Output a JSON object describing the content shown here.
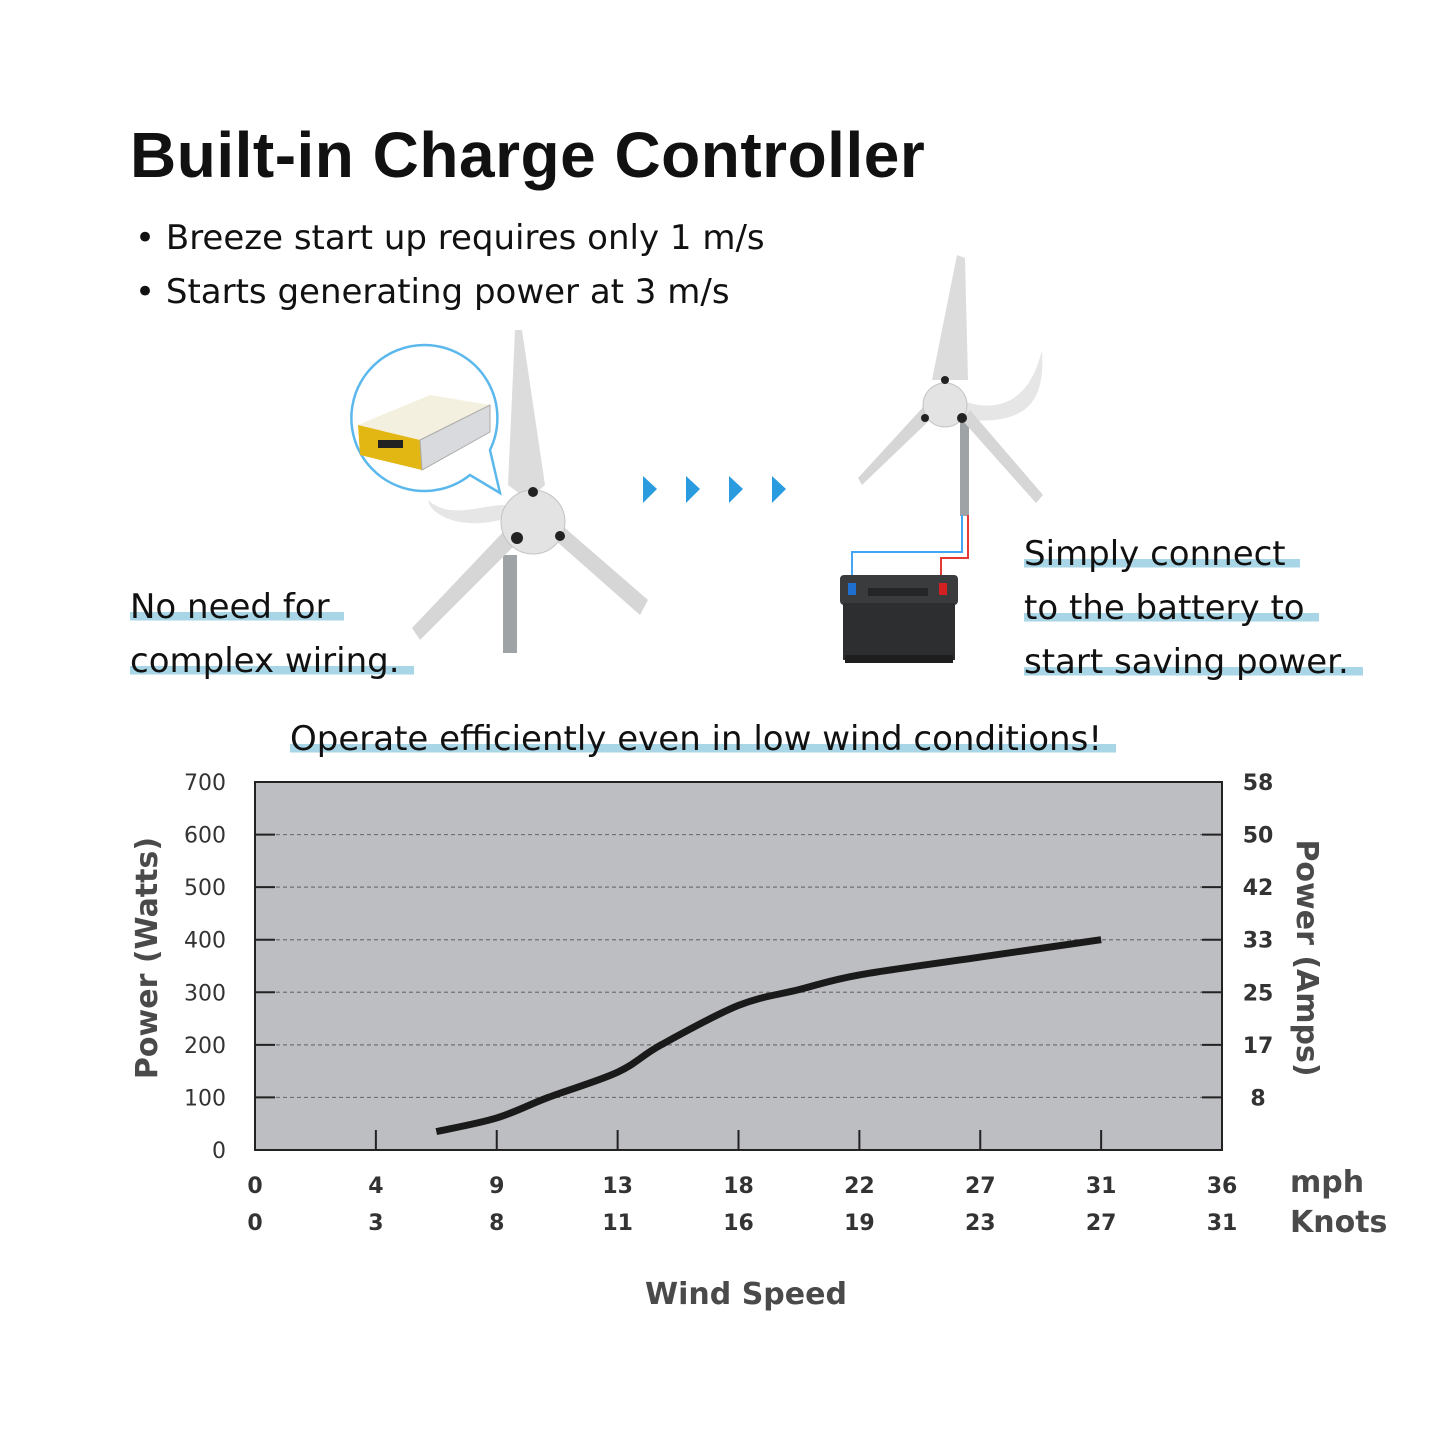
{
  "title": "Built-in Charge Controller",
  "bullets": [
    "• Breeze start up requires only 1 m/s",
    "• Starts generating power at 3 m/s"
  ],
  "left_caption": [
    "No need for",
    "complex wiring."
  ],
  "right_caption": [
    "Simply connect",
    "to the battery to",
    "start saving power."
  ],
  "chart_heading": "Operate efficiently even in low wind conditions!",
  "colors": {
    "highlight": "#a9d6e6",
    "arrow": "#2b9be0",
    "plot_bg": "#bdbec1",
    "curve": "#1a1a1a",
    "positive_wire": "#e53935",
    "negative_wire": "#42a5f5",
    "controller": "#e2b714"
  },
  "icons": [
    "charge-controller-image",
    "wind-turbine-image",
    "arrow-right-icon",
    "battery-image"
  ],
  "chart_data": {
    "type": "line",
    "title": "",
    "xlabel": "Wind Speed",
    "ylabel": "Power (Watts)",
    "y2label": "Power (Amps)",
    "ylim": [
      0,
      700
    ],
    "yticks": [
      "0",
      "100",
      "200",
      "300",
      "400",
      "500",
      "600",
      "700"
    ],
    "y2ticks": [
      "8",
      "17",
      "25",
      "33",
      "42",
      "50",
      "58"
    ],
    "x_mph_ticks": [
      "0",
      "4",
      "9",
      "13",
      "18",
      "22",
      "27",
      "31",
      "36"
    ],
    "x_knots_ticks": [
      "0",
      "3",
      "8",
      "11",
      "16",
      "19",
      "23",
      "27",
      "31"
    ],
    "x_mph_unit": "mph",
    "x_knots_unit": "Knots",
    "grid": true,
    "series": [
      {
        "x_mph": [
          6.5,
          9,
          10.7,
          13,
          14.8,
          18,
          20,
          22,
          27,
          31
        ],
        "y_watts": [
          35,
          61,
          100,
          148,
          200,
          275,
          305,
          333,
          367,
          400
        ]
      }
    ]
  }
}
